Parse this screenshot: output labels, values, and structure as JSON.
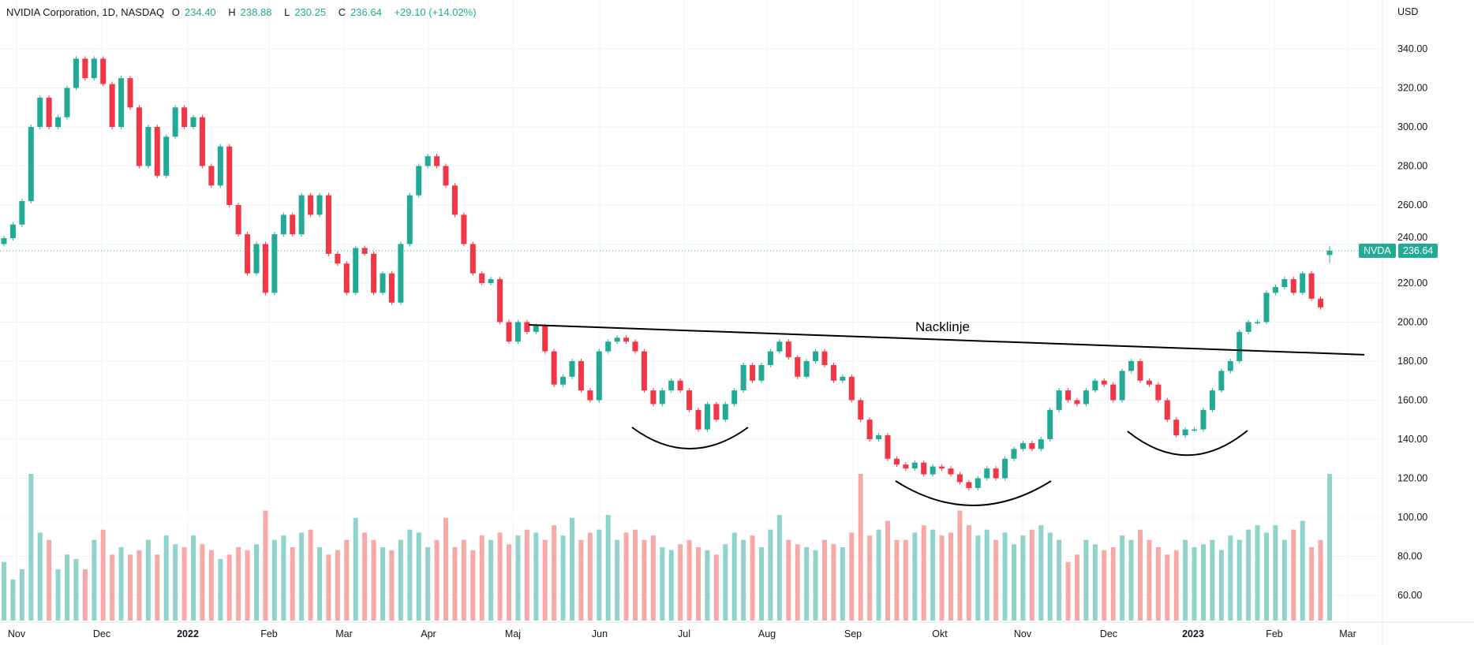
{
  "header": {
    "title": "NVIDIA Corporation, 1D, NASDAQ",
    "open_label": "O",
    "open": "234.40",
    "high_label": "H",
    "high": "238.88",
    "low_label": "L",
    "low": "230.25",
    "close_label": "C",
    "close": "236.64",
    "change": "+29.10 (+14.02%)"
  },
  "price_tag": {
    "symbol": "NVDA",
    "price": "236.64"
  },
  "colors": {
    "up": "#22ab94",
    "down": "#f23645",
    "volume_up": "#8fd3cb",
    "volume_down": "#f7a9a7",
    "grid": "#f0f3fa",
    "annotation": "#000000"
  },
  "chart_data": {
    "type": "candlestick",
    "currency": "USD",
    "y_ticks": [
      "340.00",
      "320.00",
      "300.00",
      "280.00",
      "260.00",
      "240.00",
      "220.00",
      "200.00",
      "180.00",
      "160.00",
      "140.00",
      "120.00",
      "100.00",
      "80.00",
      "60.00"
    ],
    "ylim": [
      50,
      350
    ],
    "x_ticks": [
      "Nov",
      "Dec",
      "2022",
      "Feb",
      "Mar",
      "Apr",
      "Maj",
      "Jun",
      "Jul",
      "Aug",
      "Sep",
      "Okt",
      "Nov",
      "Dec",
      "2023",
      "Feb",
      "Mar"
    ],
    "bold_x_ticks": [
      "2022",
      "2023"
    ],
    "grid": true,
    "first_open": 240,
    "closes": [
      243,
      250,
      262,
      300,
      315,
      300,
      305,
      320,
      335,
      325,
      335,
      322,
      300,
      325,
      310,
      280,
      300,
      275,
      295,
      310,
      300,
      305,
      280,
      270,
      290,
      260,
      245,
      225,
      240,
      215,
      245,
      255,
      245,
      265,
      255,
      265,
      235,
      230,
      215,
      238,
      235,
      215,
      225,
      210,
      240,
      265,
      280,
      285,
      280,
      270,
      255,
      240,
      225,
      220,
      222,
      200,
      190,
      200,
      195,
      198,
      185,
      168,
      172,
      180,
      165,
      160,
      185,
      190,
      192,
      190,
      185,
      165,
      158,
      165,
      170,
      165,
      155,
      145,
      158,
      150,
      158,
      165,
      178,
      170,
      178,
      185,
      190,
      182,
      172,
      180,
      185,
      178,
      170,
      172,
      160,
      150,
      140,
      142,
      130,
      127,
      125,
      128,
      122,
      126,
      125,
      122,
      118,
      115,
      120,
      125,
      120,
      130,
      135,
      138,
      135,
      140,
      155,
      165,
      160,
      158,
      165,
      170,
      168,
      160,
      175,
      180,
      170,
      168,
      160,
      150,
      142,
      145,
      145,
      155,
      165,
      175,
      180,
      195,
      200,
      200,
      215,
      218,
      222,
      215,
      225,
      212,
      207.54,
      236.64
    ],
    "last_candle": {
      "open": 234.4,
      "high": 238.88,
      "low": 230.25,
      "close": 236.64
    },
    "volumes_relative": [
      40,
      28,
      35,
      100,
      60,
      55,
      35,
      45,
      42,
      35,
      55,
      62,
      45,
      50,
      45,
      48,
      55,
      45,
      58,
      52,
      50,
      58,
      52,
      48,
      42,
      45,
      50,
      48,
      52,
      75,
      55,
      58,
      50,
      60,
      62,
      50,
      45,
      48,
      55,
      70,
      60,
      55,
      50,
      48,
      55,
      62,
      60,
      50,
      55,
      70,
      50,
      55,
      48,
      58,
      55,
      60,
      52,
      58,
      62,
      60,
      55,
      65,
      58,
      70,
      55,
      60,
      62,
      72,
      55,
      60,
      62,
      55,
      58,
      50,
      48,
      52,
      55,
      50,
      48,
      45,
      52,
      60,
      55,
      58,
      50,
      62,
      72,
      55,
      52,
      50,
      48,
      55,
      52,
      50,
      60,
      100,
      58,
      62,
      68,
      55,
      55,
      60,
      65,
      62,
      58,
      60,
      75,
      65,
      58,
      62,
      55,
      60,
      52,
      58,
      62,
      65,
      60,
      55,
      40,
      45,
      55,
      52,
      48,
      50,
      58,
      55,
      62,
      55,
      50,
      45,
      48,
      55,
      50,
      52,
      55,
      48,
      58,
      55,
      62,
      65,
      60,
      65,
      55,
      62,
      68,
      50,
      55,
      100
    ],
    "annotations": {
      "neckline_label": "Nacklinje",
      "neckline": {
        "from_price": 198.6,
        "to_price": 183.3
      },
      "pattern": "inverted head and shoulders"
    }
  }
}
